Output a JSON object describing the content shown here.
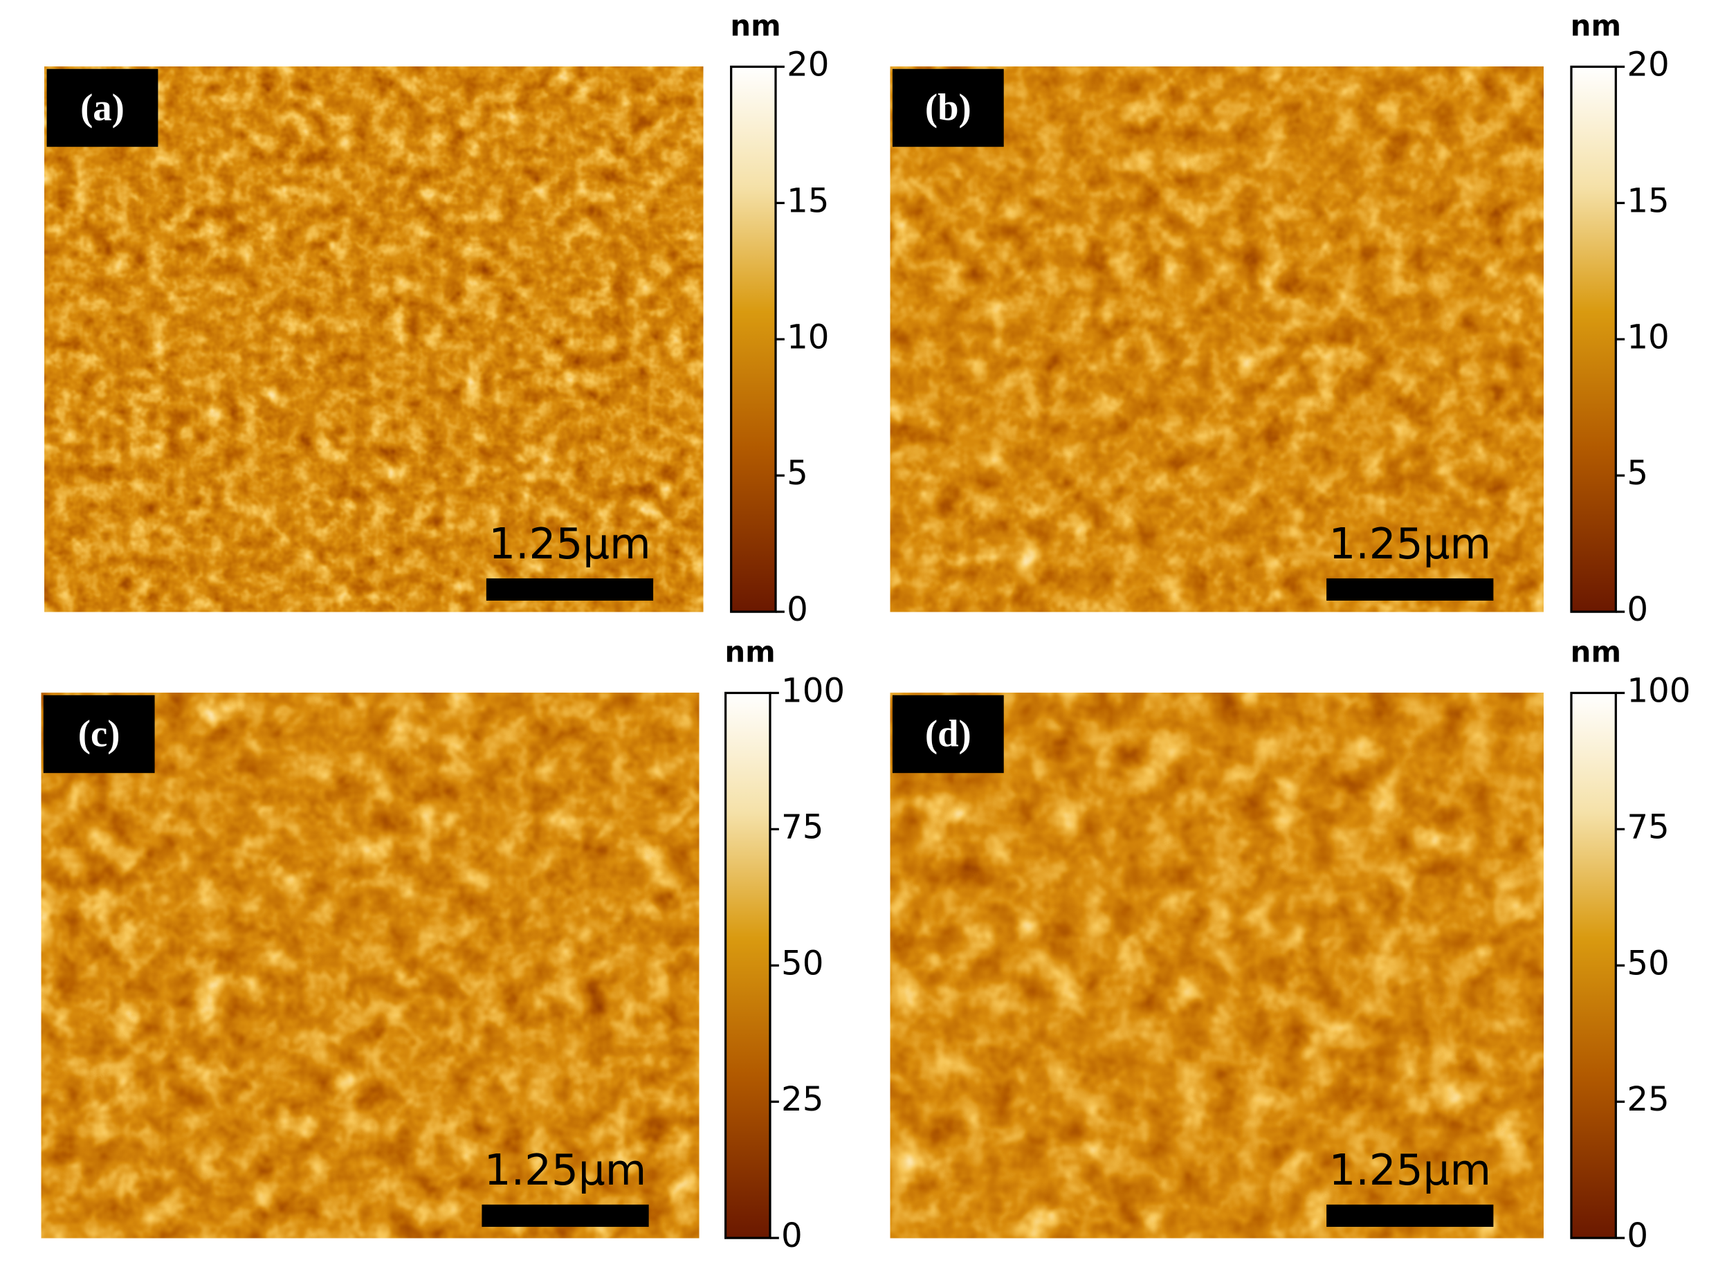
{
  "panels": [
    {
      "label": "(a)",
      "scale_bar": "1.25µm",
      "unit": "nm",
      "ticks": [
        0,
        5,
        10,
        15,
        20
      ]
    },
    {
      "label": "(b)",
      "scale_bar": "1.25µm",
      "unit": "nm",
      "ticks": [
        0,
        5,
        10,
        15,
        20
      ]
    },
    {
      "label": "(c)",
      "scale_bar": "1.25µm",
      "unit": "nm",
      "ticks": [
        0,
        25,
        50,
        75,
        100
      ]
    },
    {
      "label": "(d)",
      "scale_bar": "1.25µm",
      "unit": "nm",
      "ticks": [
        0,
        25,
        50,
        75,
        100
      ]
    }
  ]
}
